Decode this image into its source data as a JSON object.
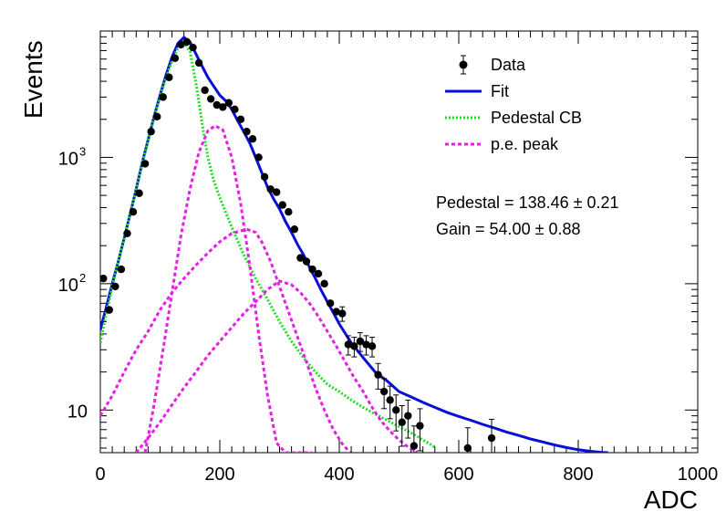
{
  "chart_data": {
    "type": "scatter",
    "xlabel": "ADC",
    "ylabel": "Events",
    "xlim": [
      0,
      1000
    ],
    "ylim": [
      4.6,
      10000
    ],
    "y_scale": "log",
    "grid": false,
    "legend_position": "top-right",
    "x_ticks": [
      {
        "value": 0,
        "label": "0"
      },
      {
        "value": 200,
        "label": "200"
      },
      {
        "value": 400,
        "label": "400"
      },
      {
        "value": 600,
        "label": "600"
      },
      {
        "value": 800,
        "label": "800"
      },
      {
        "value": 1000,
        "label": "1000"
      }
    ],
    "y_ticks": [
      {
        "value": 10,
        "base": "10",
        "exp": ""
      },
      {
        "value": 100,
        "base": "10",
        "exp": "2"
      },
      {
        "value": 1000,
        "base": "10",
        "exp": "3"
      }
    ],
    "series": [
      {
        "name": "Data",
        "kind": "points_with_errors",
        "color": "#000000",
        "x": [
          5,
          15,
          25,
          35,
          45,
          55,
          65,
          75,
          85,
          95,
          105,
          115,
          125,
          135,
          145,
          155,
          165,
          175,
          185,
          195,
          205,
          215,
          225,
          235,
          245,
          255,
          265,
          275,
          285,
          295,
          305,
          315,
          325,
          335,
          345,
          355,
          365,
          375,
          385,
          395,
          405,
          415,
          425,
          435,
          445,
          455,
          465,
          475,
          485,
          495,
          505,
          515,
          525,
          535,
          615,
          655
        ],
        "y": [
          110,
          62,
          95,
          130,
          250,
          370,
          520,
          890,
          1600,
          2100,
          3000,
          4300,
          6100,
          7800,
          8200,
          7400,
          5600,
          3400,
          2900,
          2600,
          2500,
          2700,
          2400,
          2000,
          1600,
          1400,
          1000,
          700,
          560,
          530,
          420,
          370,
          270,
          160,
          150,
          130,
          120,
          100,
          70,
          60,
          58,
          33,
          32,
          35,
          33,
          32,
          19,
          14,
          12,
          10,
          8,
          9,
          5.2,
          7.5,
          5,
          6
        ]
      },
      {
        "name": "Fit",
        "kind": "line",
        "color": "#0a0fd6",
        "style": "solid",
        "x": [
          0,
          10,
          20,
          30,
          40,
          50,
          60,
          70,
          80,
          90,
          100,
          110,
          120,
          130,
          140,
          150,
          160,
          170,
          180,
          190,
          200,
          210,
          220,
          230,
          240,
          250,
          260,
          270,
          280,
          290,
          300,
          310,
          320,
          330,
          340,
          350,
          360,
          370,
          380,
          390,
          400,
          420,
          440,
          460,
          480,
          500,
          520,
          540,
          560,
          580,
          600,
          620,
          640,
          660,
          680,
          700,
          720,
          740,
          760,
          780,
          800,
          820,
          840,
          850
        ],
        "y": [
          43,
          65,
          100,
          150,
          230,
          360,
          560,
          900,
          1380,
          2100,
          3100,
          4500,
          6200,
          8000,
          8900,
          8200,
          6600,
          5300,
          4300,
          3650,
          3100,
          2800,
          2400,
          1950,
          1600,
          1300,
          1000,
          760,
          580,
          470,
          390,
          310,
          255,
          205,
          170,
          135,
          110,
          88,
          72,
          59,
          48,
          34,
          26,
          20,
          17,
          14,
          12.7,
          11.5,
          10.5,
          9.6,
          8.9,
          8.3,
          7.7,
          7.2,
          6.7,
          6.3,
          5.9,
          5.6,
          5.3,
          5.05,
          4.85,
          4.72,
          4.62,
          4.6
        ]
      },
      {
        "name": "Pedestal CB",
        "kind": "line",
        "color": "#1ee01e",
        "style": "dotted",
        "x": [
          0,
          10,
          20,
          30,
          40,
          50,
          60,
          70,
          80,
          90,
          100,
          110,
          120,
          130,
          140,
          150,
          160,
          170,
          180,
          190,
          200,
          220,
          240,
          260,
          280,
          300,
          320,
          340,
          360,
          380,
          400,
          420,
          440,
          460,
          480,
          500,
          520,
          540,
          560
        ],
        "y": [
          34,
          58,
          95,
          150,
          230,
          360,
          550,
          880,
          1350,
          2050,
          3000,
          4300,
          5800,
          7400,
          8200,
          6900,
          3900,
          1900,
          1000,
          650,
          480,
          280,
          170,
          110,
          75,
          50,
          35,
          26,
          20,
          16,
          14,
          12,
          10.5,
          9.3,
          8.3,
          7.4,
          6.6,
          5.8,
          5.1
        ]
      },
      {
        "name": "p.e. peak",
        "kind": "line",
        "color": "#e61ee6",
        "style": "dashed",
        "x": [
          75,
          90,
          105,
          120,
          135,
          150,
          165,
          180,
          192,
          205,
          220,
          235,
          250,
          265,
          280,
          295,
          310,
          325,
          340,
          355
        ],
        "y": [
          4.6,
          11,
          30,
          85,
          240,
          560,
          1100,
          1620,
          1780,
          1650,
          1000,
          430,
          140,
          40,
          13,
          5.5,
          4.6,
          4.6,
          4.6,
          4.6
        ]
      },
      {
        "name": "p.e. peak 2",
        "kind": "line",
        "color": "#e61ee6",
        "style": "dashed",
        "x": [
          0,
          20,
          40,
          60,
          80,
          100,
          120,
          140,
          160,
          180,
          200,
          220,
          245,
          260,
          270,
          285,
          300,
          315,
          330,
          345,
          360,
          375,
          390,
          405,
          418
        ],
        "y": [
          9,
          13,
          20,
          30,
          42,
          62,
          85,
          110,
          140,
          175,
          215,
          250,
          270,
          255,
          215,
          150,
          95,
          60,
          38,
          24,
          15,
          10,
          7,
          5.4,
          4.6
        ]
      },
      {
        "name": "p.e. peak 3",
        "kind": "line",
        "color": "#e61ee6",
        "style": "dashed",
        "x": [
          60,
          80,
          100,
          120,
          140,
          160,
          180,
          200,
          220,
          240,
          260,
          280,
          300,
          320,
          335,
          350,
          365,
          380,
          395,
          410,
          425,
          440,
          455,
          470,
          485,
          500,
          515,
          530
        ],
        "y": [
          4.6,
          6,
          8,
          11,
          15,
          20,
          27,
          35,
          45,
          58,
          72,
          90,
          105,
          98,
          85,
          70,
          55,
          42,
          32,
          24,
          18,
          14,
          10.5,
          8.2,
          6.8,
          5.8,
          5.1,
          4.6
        ]
      }
    ],
    "legend": [
      {
        "label": "Data",
        "kind": "marker",
        "color": "#000000"
      },
      {
        "label": "Fit",
        "kind": "solid",
        "color": "#0a0fd6"
      },
      {
        "label": "Pedestal CB",
        "kind": "dotted",
        "color": "#1ee01e"
      },
      {
        "label": "p.e. peak",
        "kind": "dashed",
        "color": "#e61ee6"
      }
    ],
    "annotations": [
      "Pedestal = 138.46 ± 0.21",
      "Gain = 54.00 ± 0.88"
    ]
  }
}
